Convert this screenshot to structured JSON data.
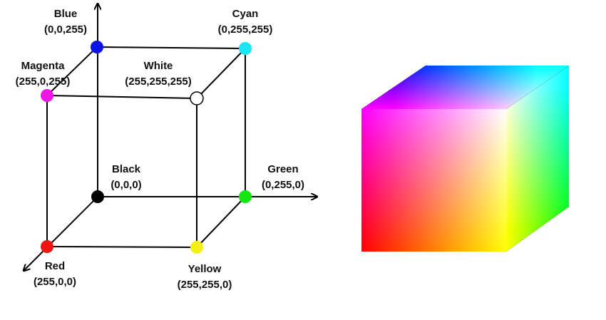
{
  "nodes": [
    {
      "name": "Blue",
      "rgb": "(0,0,255)"
    },
    {
      "name": "Cyan",
      "rgb": "(0,255,255)"
    },
    {
      "name": "Magenta",
      "rgb": "(255,0,255)"
    },
    {
      "name": "White",
      "rgb": "(255,255,255)"
    },
    {
      "name": "Black",
      "rgb": "(0,0,0)"
    },
    {
      "name": "Green",
      "rgb": "(0,255,0)"
    },
    {
      "name": "Red",
      "rgb": "(255,0,0)"
    },
    {
      "name": "Yellow",
      "rgb": "(255,255,0)"
    }
  ]
}
